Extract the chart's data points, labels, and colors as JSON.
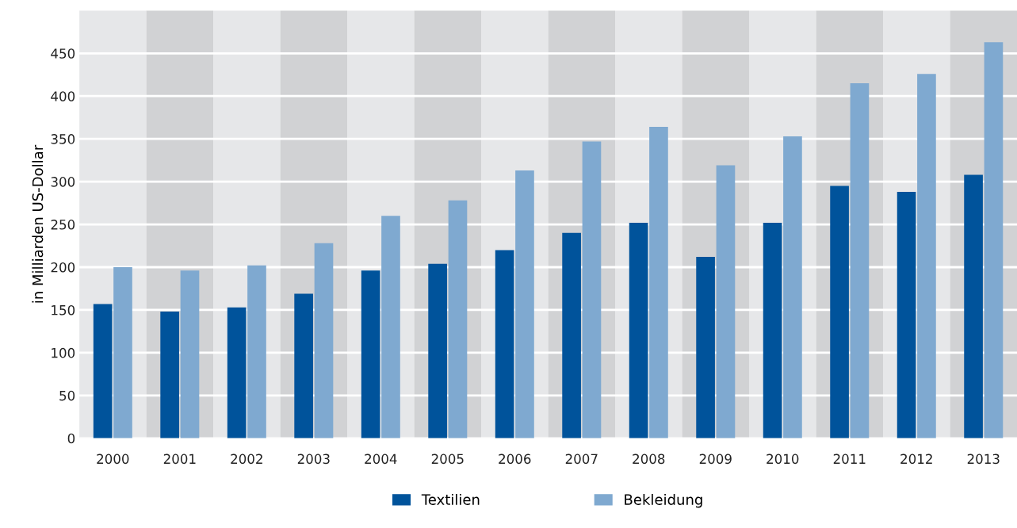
{
  "chart_data": {
    "type": "bar",
    "ylabel": "in Milliarden US-Dollar",
    "categories": [
      "2000",
      "2001",
      "2002",
      "2003",
      "2004",
      "2005",
      "2006",
      "2007",
      "2008",
      "2009",
      "2010",
      "2011",
      "2012",
      "2013"
    ],
    "series": [
      {
        "name": "Textilien",
        "color": "#00539b",
        "values": [
          157,
          148,
          153,
          169,
          196,
          204,
          220,
          240,
          252,
          212,
          252,
          295,
          288,
          308
        ]
      },
      {
        "name": "Bekleidung",
        "color": "#7fa9d0",
        "values": [
          200,
          196,
          202,
          228,
          260,
          278,
          313,
          347,
          364,
          319,
          353,
          415,
          426,
          463
        ]
      }
    ],
    "ylim": [
      0,
      500
    ],
    "yticks": [
      0,
      50,
      100,
      150,
      200,
      250,
      300,
      350,
      400,
      450
    ],
    "grid": "y",
    "legend": "bottom"
  }
}
